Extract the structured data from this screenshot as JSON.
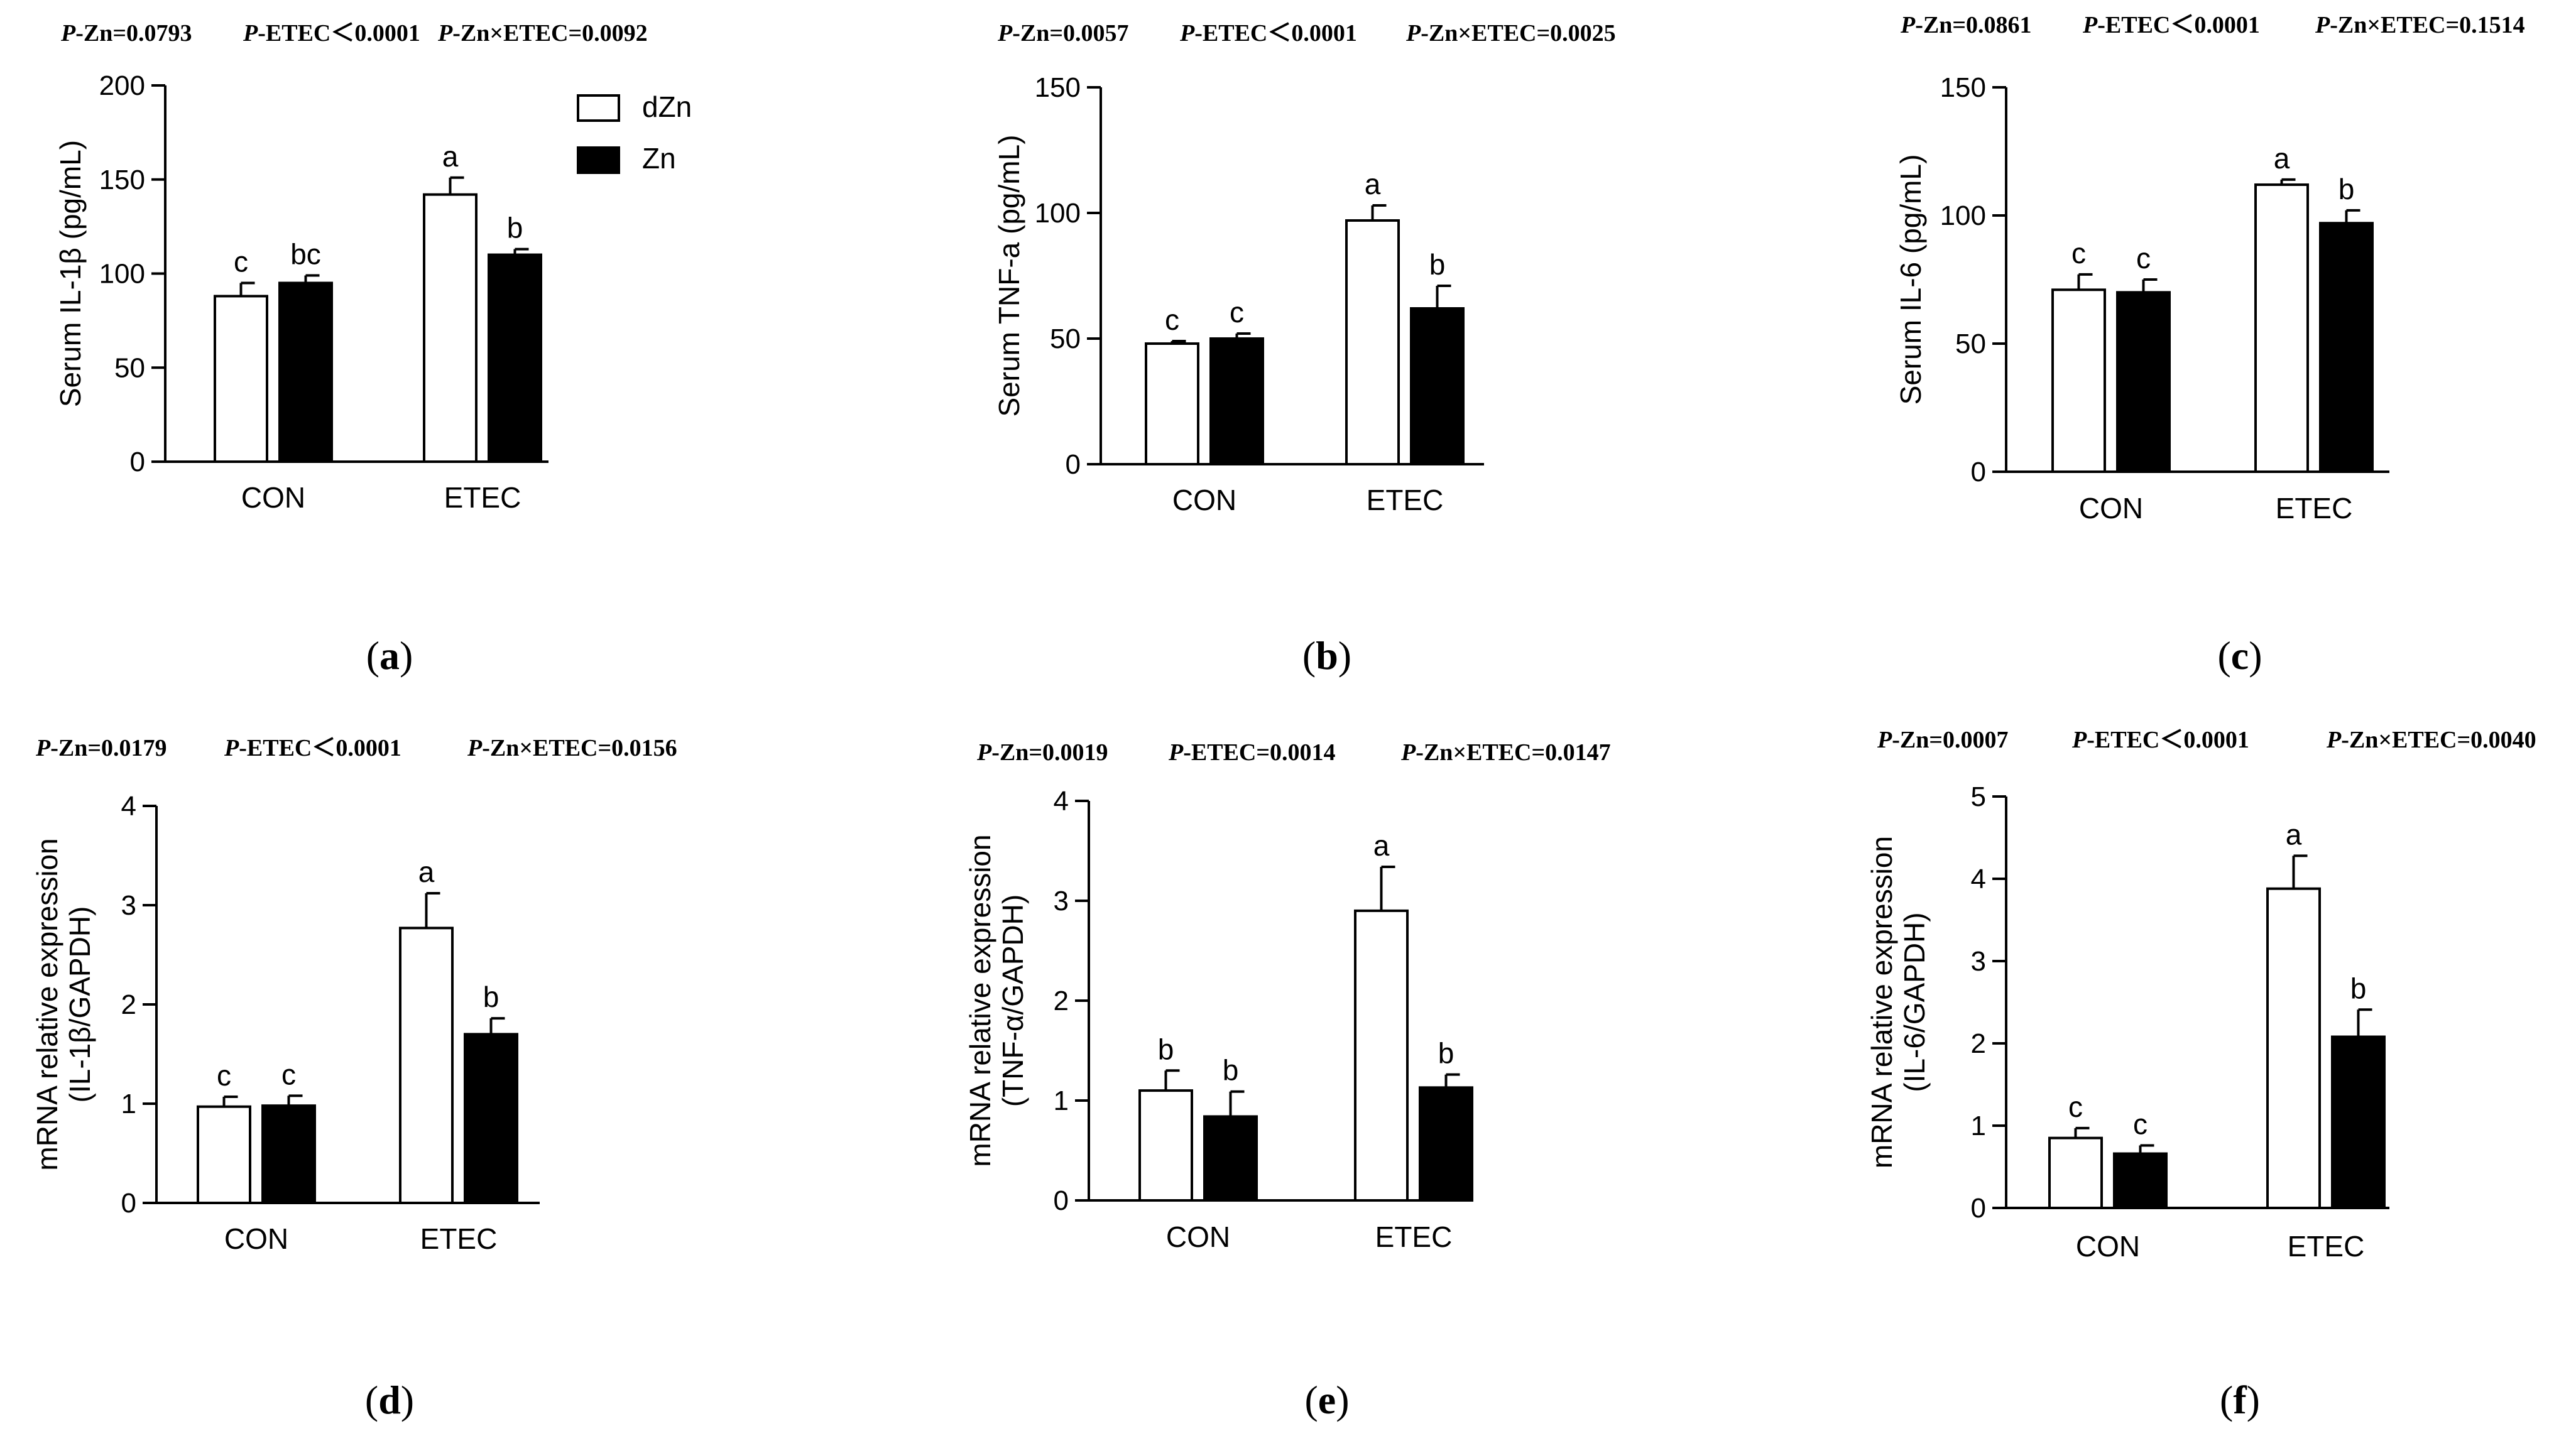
{
  "figure": {
    "legend": {
      "dzn": "dZn",
      "zn": "Zn"
    },
    "colors": {
      "dZn": "#ffffff",
      "Zn": "#000000",
      "axis": "#000000"
    }
  },
  "chart_data": [
    {
      "id": "a",
      "panel_label": "(a)",
      "type": "bar",
      "stats": [
        {
          "p": "P",
          "rest": "-Zn=0.0793"
        },
        {
          "p": "P",
          "rest": "-ETEC＜0.0001"
        },
        {
          "p": "P",
          "rest": "-Zn×ETEC=0.0092"
        }
      ],
      "ylabel": [
        "Serum IL-1β (pg/mL)"
      ],
      "ylim": [
        0,
        200
      ],
      "yticks": [
        0,
        50,
        100,
        150,
        200
      ],
      "categories": [
        "CON",
        "ETEC"
      ],
      "series": [
        {
          "name": "dZn",
          "values": [
            88,
            142
          ],
          "errors": [
            7,
            9
          ],
          "letters": [
            "c",
            "a"
          ]
        },
        {
          "name": "Zn",
          "values": [
            95,
            110
          ],
          "errors": [
            4,
            3
          ],
          "letters": [
            "bc",
            "b"
          ]
        }
      ]
    },
    {
      "id": "b",
      "panel_label": "(b)",
      "type": "bar",
      "stats": [
        {
          "p": "P",
          "rest": "-Zn=0.0057"
        },
        {
          "p": "P",
          "rest": "-ETEC＜0.0001"
        },
        {
          "p": "P",
          "rest": "-Zn×ETEC=0.0025"
        }
      ],
      "ylabel": [
        "Serum TNF-a (pg/mL)"
      ],
      "ylim": [
        0,
        150
      ],
      "yticks": [
        0,
        50,
        100,
        150
      ],
      "categories": [
        "CON",
        "ETEC"
      ],
      "series": [
        {
          "name": "dZn",
          "values": [
            48,
            97
          ],
          "errors": [
            1,
            6
          ],
          "letters": [
            "c",
            "a"
          ]
        },
        {
          "name": "Zn",
          "values": [
            50,
            62
          ],
          "errors": [
            2,
            9
          ],
          "letters": [
            "c",
            "b"
          ]
        }
      ]
    },
    {
      "id": "c",
      "panel_label": "(c)",
      "type": "bar",
      "stats": [
        {
          "p": "P",
          "rest": "-Zn=0.0861"
        },
        {
          "p": "P",
          "rest": "-ETEC＜0.0001"
        },
        {
          "p": "P",
          "rest": "-Zn×ETEC=0.1514"
        }
      ],
      "ylabel": [
        "Serum IL-6 (pg/mL)"
      ],
      "ylim": [
        0,
        150
      ],
      "yticks": [
        0,
        50,
        100,
        150
      ],
      "categories": [
        "CON",
        "ETEC"
      ],
      "series": [
        {
          "name": "dZn",
          "values": [
            71,
            112
          ],
          "errors": [
            6,
            2
          ],
          "letters": [
            "c",
            "a"
          ]
        },
        {
          "name": "Zn",
          "values": [
            70,
            97
          ],
          "errors": [
            5,
            5
          ],
          "letters": [
            "c",
            "b"
          ]
        }
      ]
    },
    {
      "id": "d",
      "panel_label": "(d)",
      "type": "bar",
      "stats": [
        {
          "p": "P",
          "rest": "-Zn=0.0179"
        },
        {
          "p": "P",
          "rest": "-ETEC＜0.0001"
        },
        {
          "p": "P",
          "rest": "-Zn×ETEC=0.0156"
        }
      ],
      "ylabel": [
        "mRNA relative expression",
        "(IL-1β/GAPDH)"
      ],
      "ylim": [
        0,
        4
      ],
      "yticks": [
        0,
        1,
        2,
        3,
        4
      ],
      "categories": [
        "CON",
        "ETEC"
      ],
      "series": [
        {
          "name": "dZn",
          "values": [
            0.97,
            2.77
          ],
          "errors": [
            0.1,
            0.35
          ],
          "letters": [
            "c",
            "a"
          ]
        },
        {
          "name": "Zn",
          "values": [
            0.98,
            1.7
          ],
          "errors": [
            0.1,
            0.16
          ],
          "letters": [
            "c",
            "b"
          ]
        }
      ]
    },
    {
      "id": "e",
      "panel_label": "(e)",
      "type": "bar",
      "stats": [
        {
          "p": "P",
          "rest": "-Zn=0.0019"
        },
        {
          "p": "P",
          "rest": "-ETEC=0.0014"
        },
        {
          "p": "P",
          "rest": "-Zn×ETEC=0.0147"
        }
      ],
      "ylabel": [
        "mRNA relative expression",
        "(TNF-α/GAPDH)"
      ],
      "ylim": [
        0,
        4
      ],
      "yticks": [
        0,
        1,
        2,
        3,
        4
      ],
      "categories": [
        "CON",
        "ETEC"
      ],
      "series": [
        {
          "name": "dZn",
          "values": [
            1.1,
            2.9
          ],
          "errors": [
            0.2,
            0.44
          ],
          "letters": [
            "b",
            "a"
          ]
        },
        {
          "name": "Zn",
          "values": [
            0.84,
            1.13
          ],
          "errors": [
            0.25,
            0.13
          ],
          "letters": [
            "b",
            "b"
          ]
        }
      ]
    },
    {
      "id": "f",
      "panel_label": "(f)",
      "type": "bar",
      "stats": [
        {
          "p": "P",
          "rest": "-Zn=0.0007"
        },
        {
          "p": "P",
          "rest": "-ETEC＜0.0001"
        },
        {
          "p": "P",
          "rest": "-Zn×ETEC=0.0040"
        }
      ],
      "ylabel": [
        "mRNA relative expression",
        "(IL-6/GAPDH)"
      ],
      "ylim": [
        0,
        5
      ],
      "yticks": [
        0,
        1,
        2,
        3,
        4,
        5
      ],
      "categories": [
        "CON",
        "ETEC"
      ],
      "series": [
        {
          "name": "dZn",
          "values": [
            0.85,
            3.88
          ],
          "errors": [
            0.12,
            0.4
          ],
          "letters": [
            "c",
            "a"
          ]
        },
        {
          "name": "Zn",
          "values": [
            0.66,
            2.08
          ],
          "errors": [
            0.1,
            0.33
          ],
          "letters": [
            "c",
            "b"
          ]
        }
      ]
    }
  ]
}
